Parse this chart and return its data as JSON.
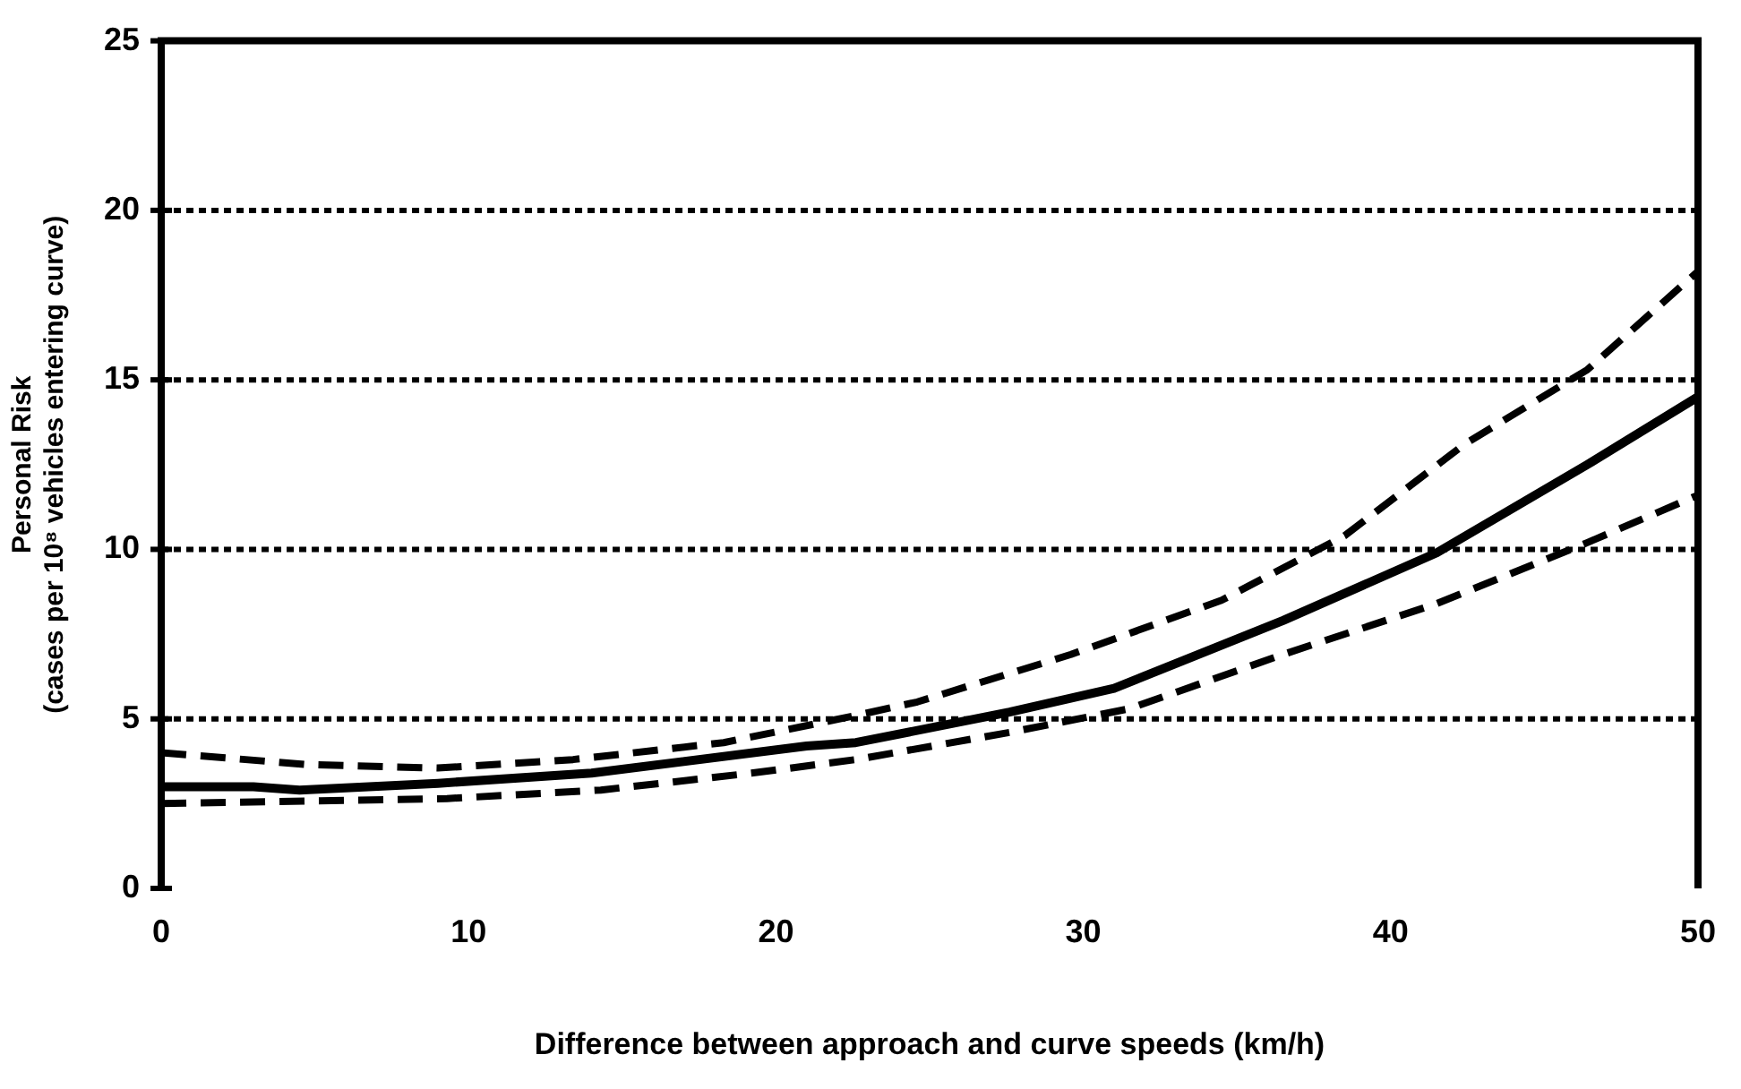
{
  "chart_data": {
    "type": "line",
    "xlabel": "Difference between approach and curve speeds (km/h)",
    "ylabel": "Personal Risk (cases per 10⁸ vehicles entering curve)",
    "xlim": [
      0,
      50
    ],
    "xticks": [
      0,
      10,
      20,
      30,
      40,
      50
    ],
    "ylim": [
      0,
      25
    ],
    "yticks": [
      0,
      5,
      10,
      15,
      20,
      25
    ],
    "grid": "y",
    "legend": false,
    "marker": "none",
    "series": [
      {
        "color": "#000000",
        "line_style": "solid",
        "x": [
          0,
          3,
          4.5,
          9,
          14,
          21,
          22.6,
          27.6,
          31,
          36.5,
          41.5,
          46.4,
          50
        ],
        "values": [
          3.0,
          3.0,
          2.9,
          3.1,
          3.4,
          4.2,
          4.3,
          5.2,
          5.9,
          7.9,
          9.9,
          12.5,
          14.5
        ]
      },
      {
        "color": "#000000",
        "line_style": "dashed",
        "x": [
          0,
          4.8,
          9,
          13.4,
          18.3,
          22.6,
          24.6,
          29.6,
          34.5,
          38.5,
          42.4,
          46.4,
          50
        ],
        "values": [
          4.0,
          3.65,
          3.55,
          3.8,
          4.3,
          5.1,
          5.5,
          6.9,
          8.5,
          10.4,
          13.1,
          15.3,
          18.2
        ]
      },
      {
        "color": "#000000",
        "line_style": "dashed",
        "x": [
          0,
          9.3,
          14.3,
          19.2,
          22.6,
          27.6,
          31.5,
          36.5,
          41.5,
          46.4,
          50
        ],
        "values": [
          2.5,
          2.65,
          2.9,
          3.4,
          3.8,
          4.6,
          5.3,
          6.9,
          8.4,
          10.2,
          11.6
        ]
      }
    ]
  }
}
